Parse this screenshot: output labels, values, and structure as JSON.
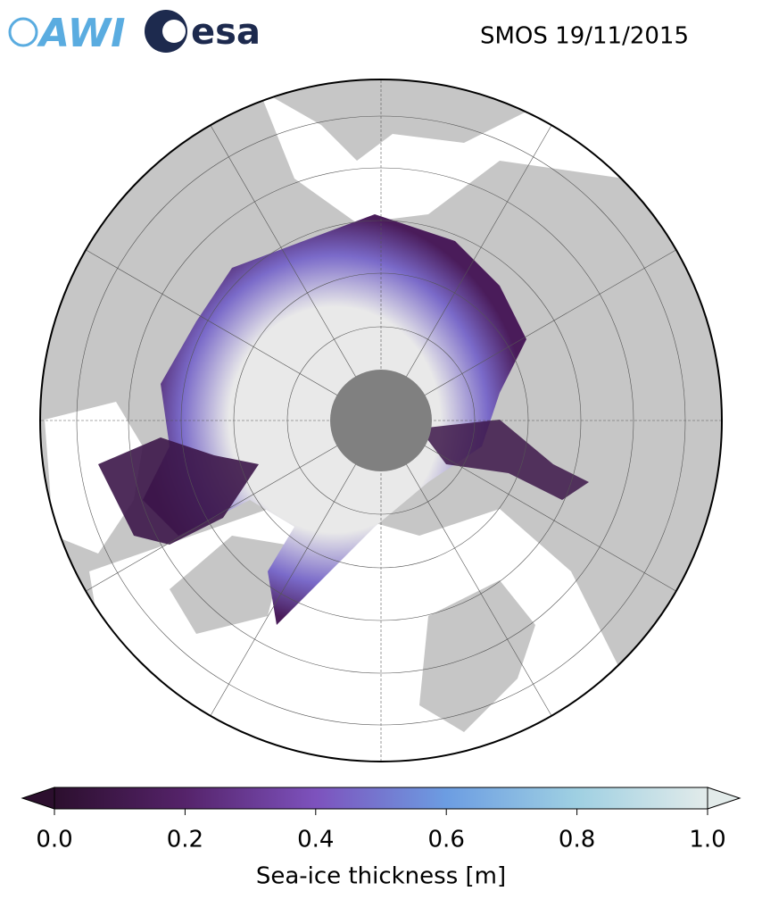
{
  "header": {
    "logos": [
      "AWI",
      "esa"
    ],
    "title": "SMOS 19/11/2015"
  },
  "colorbar": {
    "label": "Sea-ice thickness [m]",
    "lim": [
      0,
      1
    ],
    "ticks": [
      {
        "value": 0,
        "label": "0.0"
      },
      {
        "value": 0.2,
        "label": "0.2"
      },
      {
        "value": 0.4,
        "label": "0.4"
      },
      {
        "value": 0.6,
        "label": "0.6"
      },
      {
        "value": 0.8,
        "label": "0.8"
      },
      {
        "value": 1,
        "label": "1.0"
      }
    ]
  }
}
